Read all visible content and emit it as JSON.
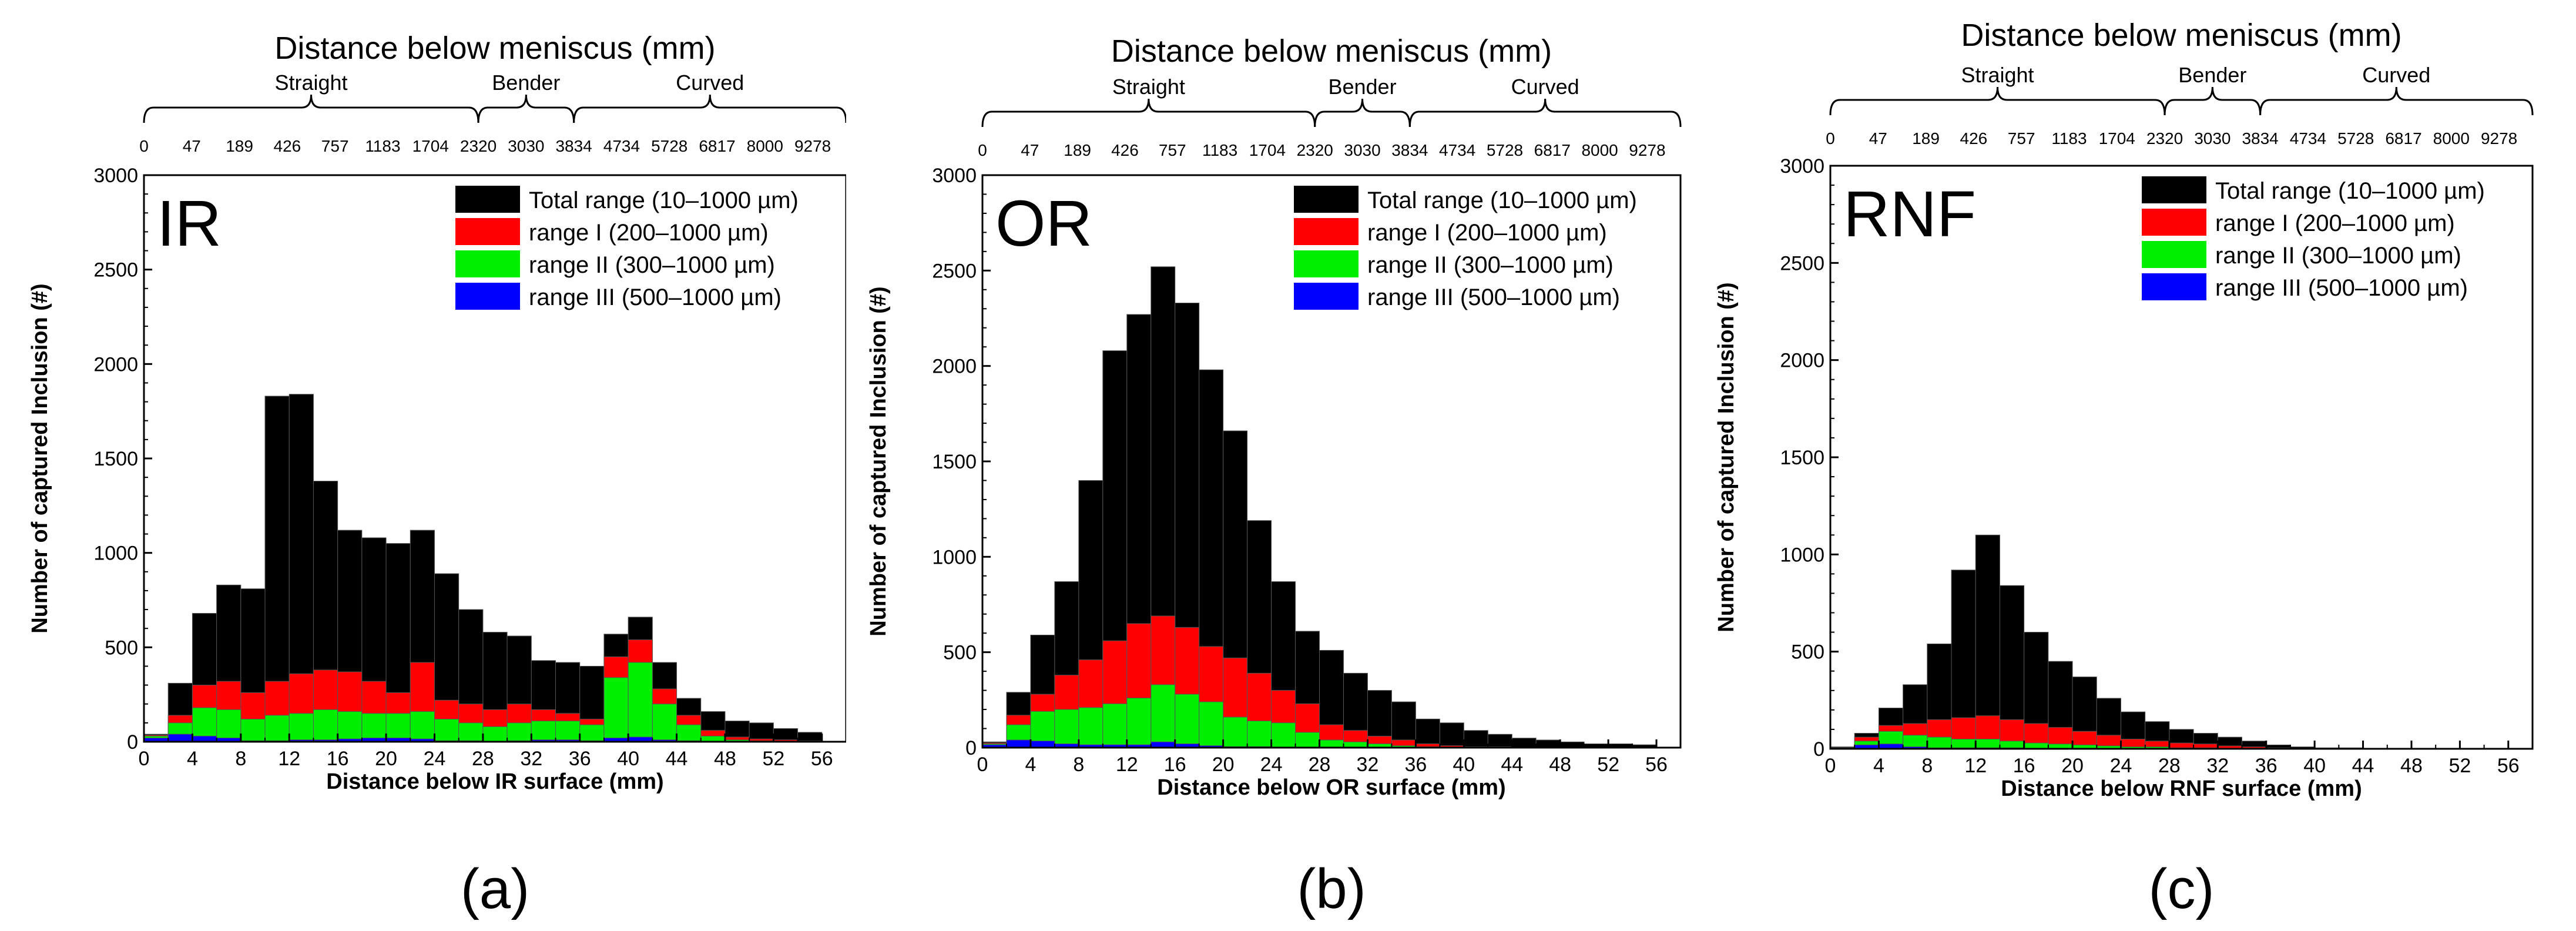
{
  "figure": {
    "top_axis_title": "Distance below meniscus (mm)",
    "top_ticks": [
      "0",
      "47",
      "189",
      "426",
      "757",
      "1183",
      "1704",
      "2320",
      "3030",
      "3834",
      "4734",
      "5728",
      "6817",
      "8000",
      "9278"
    ],
    "regions": [
      "Straight",
      "Bender",
      "Curved"
    ],
    "y_axis_label": "Number of captured Inclusion (#)",
    "legend": [
      "Total range (10–1000 µm)",
      "range I (200–1000 µm)",
      "range II (300–1000 µm)",
      "range III (500–1000 µm)"
    ],
    "colors": {
      "total": "#000000",
      "range_I": "#ff0000",
      "range_II": "#00ee00",
      "range_III": "#0000ff"
    }
  },
  "panels": [
    {
      "name": "IR",
      "caption": "(a)",
      "xlabel": "Distance below IR surface (mm)"
    },
    {
      "name": "OR",
      "caption": "(b)",
      "xlabel": "Distance below OR surface (mm)"
    },
    {
      "name": "RNF",
      "caption": "(c)",
      "xlabel": "Distance below RNF surface (mm)"
    }
  ],
  "chart_data": [
    {
      "type": "bar",
      "stacking": "overlay",
      "title": "IR",
      "xlabel": "Distance below IR surface (mm)",
      "ylabel": "Number of captured Inclusion (#)",
      "xlim": [
        0,
        58
      ],
      "ylim": [
        0,
        3000
      ],
      "x_ticks": [
        0,
        4,
        8,
        12,
        16,
        20,
        24,
        28,
        32,
        36,
        40,
        44,
        48,
        52,
        56
      ],
      "y_ticks": [
        0,
        500,
        1000,
        1500,
        2000,
        2500,
        3000
      ],
      "bin_width_mm": 2,
      "bin_starts": [
        0,
        2,
        4,
        6,
        8,
        10,
        12,
        14,
        16,
        18,
        20,
        22,
        24,
        26,
        28,
        30,
        32,
        34,
        36,
        38,
        40,
        42,
        44,
        46,
        48,
        50,
        52,
        54
      ],
      "series": [
        {
          "name": "Total range (10–1000 µm)",
          "values": [
            40,
            310,
            680,
            830,
            810,
            1830,
            1840,
            1380,
            1120,
            1080,
            1050,
            1120,
            890,
            700,
            580,
            560,
            430,
            420,
            400,
            570,
            660,
            420,
            230,
            160,
            110,
            100,
            70,
            50
          ]
        },
        {
          "name": "range I (200–1000 µm)",
          "values": [
            35,
            140,
            300,
            320,
            260,
            320,
            360,
            380,
            370,
            320,
            260,
            420,
            220,
            200,
            170,
            200,
            170,
            150,
            120,
            450,
            540,
            280,
            140,
            60,
            25,
            15,
            10,
            5
          ]
        },
        {
          "name": "range II (300–1000 µm)",
          "values": [
            30,
            100,
            180,
            170,
            120,
            140,
            150,
            170,
            160,
            150,
            150,
            160,
            120,
            100,
            80,
            100,
            110,
            110,
            90,
            340,
            420,
            200,
            90,
            30,
            10,
            5,
            0,
            0
          ]
        },
        {
          "name": "range III (500–1000 µm)",
          "values": [
            20,
            40,
            30,
            20,
            5,
            5,
            10,
            10,
            15,
            20,
            20,
            15,
            5,
            5,
            0,
            5,
            10,
            10,
            5,
            20,
            25,
            10,
            5,
            0,
            0,
            0,
            0,
            0
          ]
        }
      ]
    },
    {
      "type": "bar",
      "stacking": "overlay",
      "title": "OR",
      "xlabel": "Distance below OR surface (mm)",
      "ylabel": "Number of captured Inclusion (#)",
      "xlim": [
        0,
        58
      ],
      "ylim": [
        0,
        3000
      ],
      "x_ticks": [
        0,
        4,
        8,
        12,
        16,
        20,
        24,
        28,
        32,
        36,
        40,
        44,
        48,
        52,
        56
      ],
      "y_ticks": [
        0,
        500,
        1000,
        1500,
        2000,
        2500,
        3000
      ],
      "bin_width_mm": 2,
      "bin_starts": [
        0,
        2,
        4,
        6,
        8,
        10,
        12,
        14,
        16,
        18,
        20,
        22,
        24,
        26,
        28,
        30,
        32,
        34,
        36,
        38,
        40,
        42,
        44,
        46,
        48,
        50,
        52,
        54
      ],
      "series": [
        {
          "name": "Total range (10–1000 µm)",
          "values": [
            30,
            290,
            590,
            870,
            1400,
            2080,
            2270,
            2520,
            2330,
            1980,
            1660,
            1190,
            870,
            610,
            510,
            390,
            300,
            240,
            150,
            130,
            90,
            70,
            50,
            40,
            30,
            20,
            20,
            15
          ]
        },
        {
          "name": "range I (200–1000 µm)",
          "values": [
            25,
            170,
            280,
            380,
            460,
            560,
            650,
            690,
            630,
            530,
            470,
            390,
            300,
            230,
            120,
            90,
            60,
            40,
            20,
            10,
            5,
            5,
            0,
            0,
            0,
            0,
            0,
            0
          ]
        },
        {
          "name": "range II (300–1000 µm)",
          "values": [
            20,
            120,
            190,
            200,
            210,
            230,
            260,
            330,
            280,
            240,
            160,
            140,
            130,
            80,
            40,
            30,
            20,
            10,
            5,
            0,
            0,
            0,
            0,
            0,
            0,
            0,
            0,
            0
          ]
        },
        {
          "name": "range III (500–1000 µm)",
          "values": [
            15,
            40,
            35,
            20,
            15,
            15,
            15,
            30,
            20,
            10,
            5,
            5,
            0,
            0,
            0,
            0,
            0,
            0,
            0,
            0,
            0,
            0,
            0,
            0,
            0,
            0,
            0,
            0
          ]
        }
      ]
    },
    {
      "type": "bar",
      "stacking": "overlay",
      "title": "RNF",
      "xlabel": "Distance below RNF surface (mm)",
      "ylabel": "Number of captured Inclusion (#)",
      "xlim": [
        0,
        58
      ],
      "ylim": [
        0,
        3000
      ],
      "x_ticks": [
        0,
        4,
        8,
        12,
        16,
        20,
        24,
        28,
        32,
        36,
        40,
        44,
        48,
        52,
        56
      ],
      "y_ticks": [
        0,
        500,
        1000,
        1500,
        2000,
        2500,
        3000
      ],
      "bin_width_mm": 2,
      "bin_starts": [
        0,
        2,
        4,
        6,
        8,
        10,
        12,
        14,
        16,
        18,
        20,
        22,
        24,
        26,
        28,
        30,
        32,
        34,
        36,
        38,
        40,
        42,
        44,
        46,
        48,
        50,
        52,
        54
      ],
      "series": [
        {
          "name": "Total range (10–1000 µm)",
          "values": [
            10,
            80,
            210,
            330,
            540,
            920,
            1100,
            840,
            600,
            450,
            370,
            260,
            190,
            140,
            100,
            80,
            60,
            40,
            20,
            10,
            5,
            5,
            0,
            0,
            0,
            0,
            0,
            0
          ]
        },
        {
          "name": "range I (200–1000 µm)",
          "values": [
            5,
            60,
            120,
            130,
            150,
            160,
            170,
            150,
            130,
            110,
            90,
            70,
            50,
            40,
            30,
            25,
            15,
            10,
            5,
            0,
            0,
            0,
            0,
            0,
            0,
            0,
            0,
            0
          ]
        },
        {
          "name": "range II (300–1000 µm)",
          "values": [
            5,
            40,
            90,
            70,
            60,
            50,
            50,
            40,
            30,
            25,
            20,
            15,
            10,
            10,
            5,
            5,
            0,
            0,
            0,
            0,
            0,
            0,
            0,
            0,
            0,
            0,
            0,
            0
          ]
        },
        {
          "name": "range III (500–1000 µm)",
          "values": [
            5,
            20,
            25,
            10,
            5,
            5,
            5,
            5,
            0,
            0,
            0,
            0,
            0,
            0,
            0,
            0,
            0,
            0,
            0,
            0,
            0,
            0,
            0,
            0,
            0,
            0,
            0,
            0
          ]
        }
      ]
    }
  ]
}
